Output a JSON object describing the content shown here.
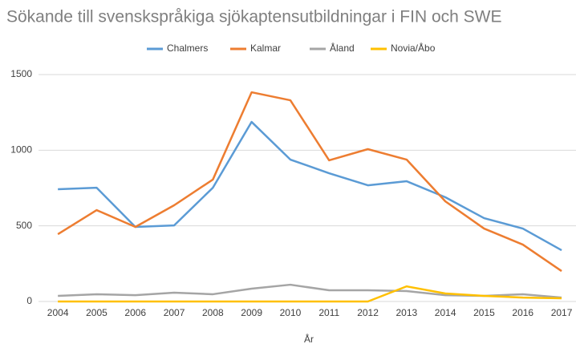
{
  "chart_data": {
    "type": "line",
    "title": "Sökande till svenskspråkiga sjökaptensutbildningar i FIN och SWE",
    "x_label": "År",
    "categories": [
      "2004",
      "2005",
      "2006",
      "2007",
      "2008",
      "2009",
      "2010",
      "2011",
      "2012",
      "2013",
      "2014",
      "2015",
      "2016",
      "2017"
    ],
    "series": [
      {
        "name": "Chalmers",
        "color": "#5b9bd5",
        "values": [
          742,
          752,
          493,
          503,
          752,
          1187,
          938,
          848,
          768,
          795,
          689,
          551,
          482,
          339
        ]
      },
      {
        "name": "Kalmar",
        "color": "#ed7d31",
        "values": [
          445,
          604,
          493,
          636,
          806,
          1383,
          1330,
          933,
          1007,
          938,
          662,
          482,
          376,
          201
        ]
      },
      {
        "name": "Åland",
        "color": "#a5a5a5",
        "values": [
          37,
          48,
          42,
          58,
          48,
          85,
          111,
          74,
          74,
          69,
          42,
          37,
          48,
          26
        ]
      },
      {
        "name": "Novia/Åbo",
        "color": "#ffc000",
        "values": [
          0,
          0,
          0,
          0,
          0,
          0,
          0,
          0,
          0,
          100,
          53,
          37,
          26,
          21
        ]
      }
    ],
    "ylim": [
      0,
      1500
    ],
    "yticks": [
      0,
      500,
      1000,
      1500
    ],
    "grid": true,
    "legend": "top"
  }
}
